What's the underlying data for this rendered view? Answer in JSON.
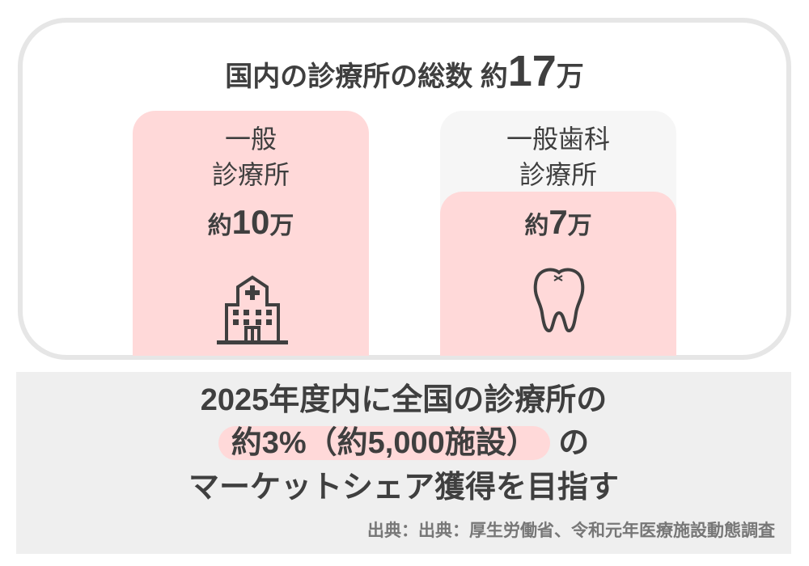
{
  "header": {
    "title_prefix": "国内の診療所の総数",
    "title_approx": "約",
    "title_number": "17",
    "title_unit": "万"
  },
  "cards": [
    {
      "label_line1": "一般",
      "label_line2": "診療所",
      "approx": "約",
      "number": "10",
      "unit": "万",
      "icon": "hospital-icon"
    },
    {
      "label_line1": "一般歯科",
      "label_line2": "診療所",
      "approx": "約",
      "number": "7",
      "unit": "万",
      "icon": "tooth-icon"
    }
  ],
  "goal": {
    "line1": "2025年度内に全国の診療所の",
    "highlight": "約3%（約5,000施設）",
    "line2_suffix": "の",
    "line3": "マーケットシェア獲得を目指す"
  },
  "source": "出典：出典：厚生労働省、令和元年医療施設動態調査",
  "colors": {
    "pink": "#ffd9d9",
    "text": "#3f3f3f",
    "gray_bg": "#efefef",
    "border": "#e6e6e6"
  }
}
